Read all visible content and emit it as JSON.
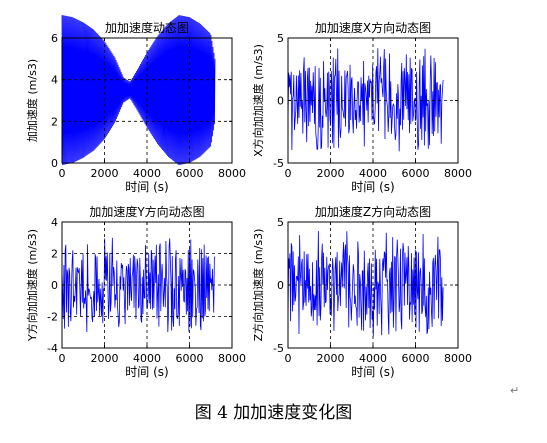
{
  "figure": {
    "caption": "图 4  加加速度变化图",
    "return_mark": "↵"
  },
  "chart_data": [
    {
      "type": "line",
      "title": "加加速度动态图",
      "xlabel": "时间 (s)",
      "ylabel": "加加速度 (m/s3)",
      "xlim": [
        0,
        8000
      ],
      "ylim": [
        0,
        6
      ],
      "xticks": [
        0,
        2000,
        4000,
        6000,
        8000
      ],
      "yticks": [
        0,
        2,
        4,
        6
      ],
      "grid": "dashed",
      "line_color": "#0000ff",
      "series": [
        {
          "pattern": "oscillation",
          "x_range": [
            0,
            7200
          ],
          "cycles": 150,
          "center": 3.5,
          "envelope_x": [
            0,
            500,
            1000,
            1500,
            2000,
            2500,
            2900,
            3200,
            3500,
            4000,
            4500,
            5000,
            5500,
            6000,
            6500,
            7000,
            7200
          ],
          "envelope_amp": [
            3.6,
            3.5,
            3.25,
            2.9,
            2.35,
            1.55,
            0.6,
            0.4,
            0.9,
            1.8,
            2.6,
            3.2,
            3.6,
            3.5,
            3.2,
            2.7,
            1.5
          ]
        }
      ]
    },
    {
      "type": "line",
      "title": "加加速度X方向动态图",
      "xlabel": "时间 (s)",
      "ylabel": "X方向加加速度 (m/s3)",
      "xlim": [
        0,
        8000
      ],
      "ylim": [
        -5,
        5
      ],
      "xticks": [
        0,
        2000,
        4000,
        6000,
        8000
      ],
      "yticks": [
        -5,
        0,
        5
      ],
      "grid": "dashed",
      "line_color": "#0000ff",
      "series": [
        {
          "pattern": "irregular",
          "x_range": [
            0,
            7300
          ],
          "points": 240,
          "amplitude": 4.2,
          "center": 0
        }
      ]
    },
    {
      "type": "line",
      "title": "加加速度Y方向动态图",
      "xlabel": "时间 (s)",
      "ylabel": "Y方向加加速度 (m/s3)",
      "xlim": [
        0,
        8000
      ],
      "ylim": [
        -4,
        4
      ],
      "xticks": [
        0,
        2000,
        4000,
        6000,
        8000
      ],
      "yticks": [
        -4,
        -2,
        0,
        2,
        4
      ],
      "grid": "dashed",
      "line_color": "#0000ff",
      "series": [
        {
          "pattern": "irregular",
          "x_range": [
            0,
            7200
          ],
          "points": 240,
          "amplitude": 3.0,
          "center": 0
        }
      ]
    },
    {
      "type": "line",
      "title": "加加速度Z方向动态图",
      "xlabel": "时间 (s)",
      "ylabel": "Z方向加加速度 (m/s3)",
      "xlim": [
        0,
        8000
      ],
      "ylim": [
        -5,
        5
      ],
      "xticks": [
        0,
        2000,
        4000,
        6000,
        8000
      ],
      "yticks": [
        -5,
        0,
        5
      ],
      "grid": "dashed",
      "line_color": "#0000ff",
      "series": [
        {
          "pattern": "irregular",
          "x_range": [
            0,
            7300
          ],
          "points": 240,
          "amplitude": 4.3,
          "center": 0
        }
      ]
    }
  ]
}
